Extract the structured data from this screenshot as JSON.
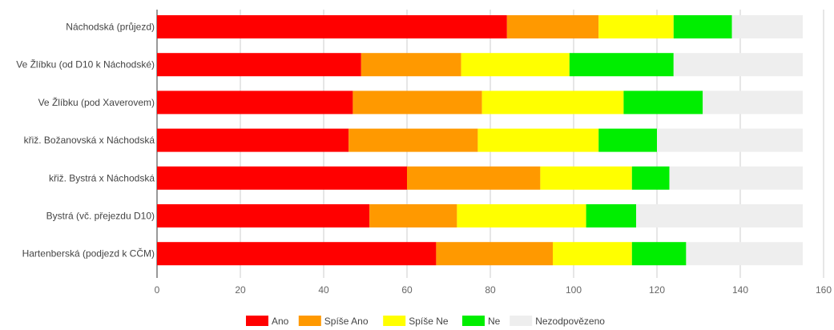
{
  "chart_data": {
    "type": "bar",
    "orientation": "horizontal",
    "stacked": true,
    "categories": [
      "Náchodská (průjezd)",
      "Ve Žlíbku (od D10 k Náchodské)",
      "Ve Žlíbku (pod Xaverovem)",
      "křiž. Božanovská x Náchodská",
      "křiž. Bystrá x Náchodská",
      "Bystrá (vč. přejezdu D10)",
      "Hartenberská (podjezd k CČM)"
    ],
    "series": [
      {
        "name": "Ano",
        "color": "#ff0000",
        "values": [
          84,
          49,
          47,
          46,
          60,
          51,
          67
        ]
      },
      {
        "name": "Spíše Ano",
        "color": "#ff9900",
        "values": [
          22,
          24,
          31,
          31,
          32,
          21,
          28
        ]
      },
      {
        "name": "Spíše Ne",
        "color": "#ffff00",
        "values": [
          18,
          26,
          34,
          29,
          22,
          31,
          19
        ]
      },
      {
        "name": "Ne",
        "color": "#00ee00",
        "values": [
          14,
          25,
          19,
          14,
          9,
          12,
          13
        ]
      },
      {
        "name": "Nezodpovězeno",
        "color": "#eeeeee",
        "values": [
          17,
          31,
          24,
          35,
          32,
          40,
          28
        ]
      }
    ],
    "xlim": [
      0,
      160
    ],
    "xticks": [
      0,
      20,
      40,
      60,
      80,
      100,
      120,
      140,
      160
    ],
    "grid": true,
    "legend": "bottom"
  }
}
